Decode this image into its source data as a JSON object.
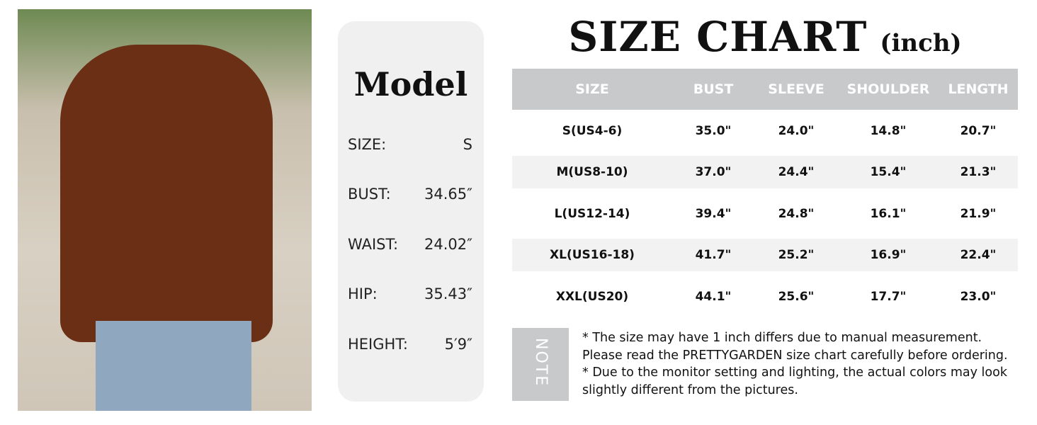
{
  "model": {
    "title": "Model",
    "rows": [
      {
        "label": "SIZE:",
        "value": "S"
      },
      {
        "label": "BUST:",
        "value": "34.65″"
      },
      {
        "label": "WAIST:",
        "value": "24.02″"
      },
      {
        "label": "HIP:",
        "value": "35.43″"
      },
      {
        "label": "HEIGHT:",
        "value": "5′9″"
      }
    ]
  },
  "title": {
    "main": "SIZE CHART",
    "unit": "(inch)"
  },
  "table": {
    "headers": [
      "SIZE",
      "BUST",
      "SLEEVE",
      "SHOULDER",
      "LENGTH"
    ],
    "rows": [
      [
        "S(US4-6)",
        "35.0\"",
        "24.0\"",
        "14.8\"",
        "20.7\""
      ],
      [
        "M(US8-10)",
        "37.0\"",
        "24.4\"",
        "15.4\"",
        "21.3\""
      ],
      [
        "L(US12-14)",
        "39.4\"",
        "24.8\"",
        "16.1\"",
        "21.9\""
      ],
      [
        "XL(US16-18)",
        "41.7\"",
        "25.2\"",
        "16.9\"",
        "22.4\""
      ],
      [
        "XXL(US20)",
        "44.1\"",
        "25.6\"",
        "17.7\"",
        "23.0\""
      ]
    ]
  },
  "note": {
    "label": "NOTE",
    "lines": [
      "* The size may have 1 inch differs due to manual measurement.",
      "Please read the PRETTYGARDEN size chart carefully before ordering.",
      "* Due to the monitor setting and lighting, the actual colors may look",
      "slightly different from the pictures."
    ]
  },
  "colors": {
    "header": "#c8c9cb",
    "stripe": "#f2f2f2",
    "card": "#f0f0f0",
    "sweater": "#6a2f14"
  }
}
